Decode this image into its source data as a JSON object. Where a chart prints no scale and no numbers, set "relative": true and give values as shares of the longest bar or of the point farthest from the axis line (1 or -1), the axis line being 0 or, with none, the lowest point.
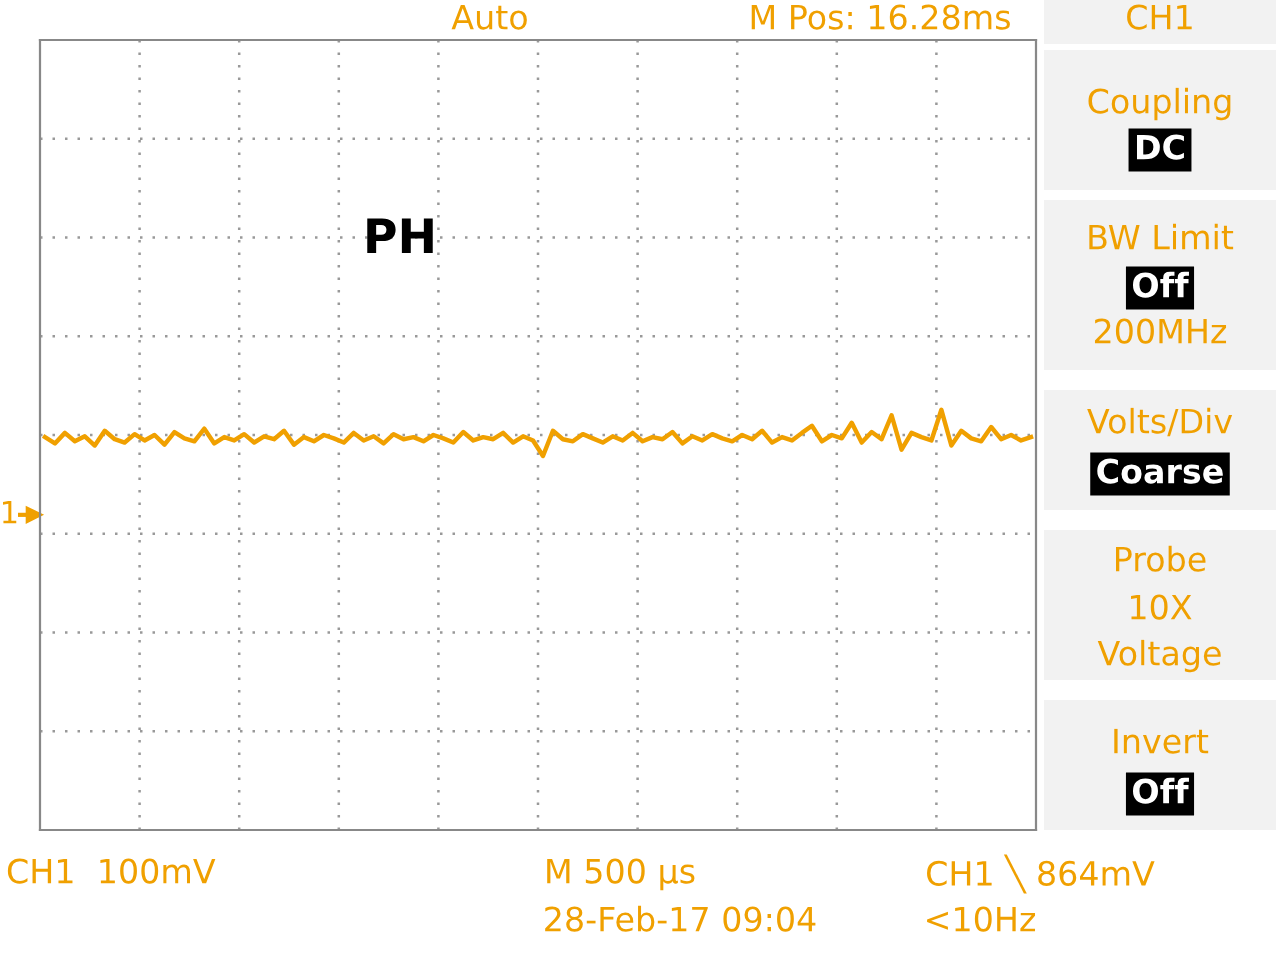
{
  "chart_data": {
    "type": "line",
    "relative": true,
    "color": "#f0a000",
    "categories": [
      null,
      null,
      null,
      null,
      null,
      null,
      null,
      null,
      null,
      null,
      null,
      null,
      null,
      null,
      null,
      null,
      null,
      null,
      null,
      null,
      null,
      null,
      null,
      null,
      null,
      null,
      null,
      null,
      null,
      null,
      null,
      null,
      null,
      null,
      null,
      null,
      null,
      null,
      null,
      null,
      null,
      null,
      null,
      null,
      null,
      null,
      null,
      null,
      null,
      null,
      null,
      null,
      null,
      null,
      null,
      null,
      null,
      null,
      null,
      null,
      null,
      null,
      null,
      null,
      null,
      null,
      null,
      null,
      null,
      null,
      null,
      null,
      null,
      null,
      null,
      null,
      null,
      null,
      null,
      null,
      null,
      null,
      null,
      null,
      null,
      null,
      null,
      null,
      null,
      null,
      null,
      null,
      null,
      null,
      null,
      null,
      null,
      null,
      null,
      null
    ],
    "values": [
      0.935,
      0.92,
      0.945,
      0.925,
      0.937,
      0.915,
      0.95,
      0.93,
      0.922,
      0.942,
      0.927,
      0.94,
      0.917,
      0.947,
      0.932,
      0.925,
      0.955,
      0.92,
      0.935,
      0.927,
      0.942,
      0.922,
      0.937,
      0.93,
      0.95,
      0.917,
      0.935,
      0.925,
      0.94,
      0.932,
      0.922,
      0.945,
      0.927,
      0.937,
      0.92,
      0.942,
      0.93,
      0.935,
      0.925,
      0.94,
      0.932,
      0.922,
      0.947,
      0.927,
      0.935,
      0.93,
      0.945,
      0.922,
      0.937,
      0.927,
      0.89,
      0.95,
      0.93,
      0.925,
      0.942,
      0.932,
      0.922,
      0.937,
      0.927,
      0.945,
      0.925,
      0.935,
      0.93,
      0.947,
      0.92,
      0.937,
      0.927,
      0.942,
      0.932,
      0.925,
      0.94,
      0.93,
      0.95,
      0.922,
      0.935,
      0.927,
      0.945,
      0.962,
      0.925,
      0.94,
      0.932,
      0.969,
      0.922,
      0.947,
      0.93,
      0.987,
      0.905,
      0.945,
      0.935,
      0.927,
      1.0,
      0.915,
      0.95,
      0.932,
      0.925,
      0.959,
      0.93,
      0.94,
      0.927,
      0.935
    ],
    "ref_lines": [
      {
        "axis": "y",
        "value": 0.75,
        "label": "1"
      }
    ],
    "grid": true,
    "line_style": "solid",
    "marker": "none",
    "annotations": [
      "PH",
      "Auto",
      "M Pos: 16.28ms",
      "CH1",
      "Coupling",
      "DC",
      "BW Limit",
      "Off",
      "200MHz",
      "Volts/Div",
      "Coarse",
      "Probe",
      "10X",
      "Voltage",
      "Invert",
      "Off",
      "CH1  100mV",
      "M 500 µs",
      "28-Feb-17 09:04",
      "CH1 ╲ 864mV",
      "<10Hz"
    ]
  }
}
